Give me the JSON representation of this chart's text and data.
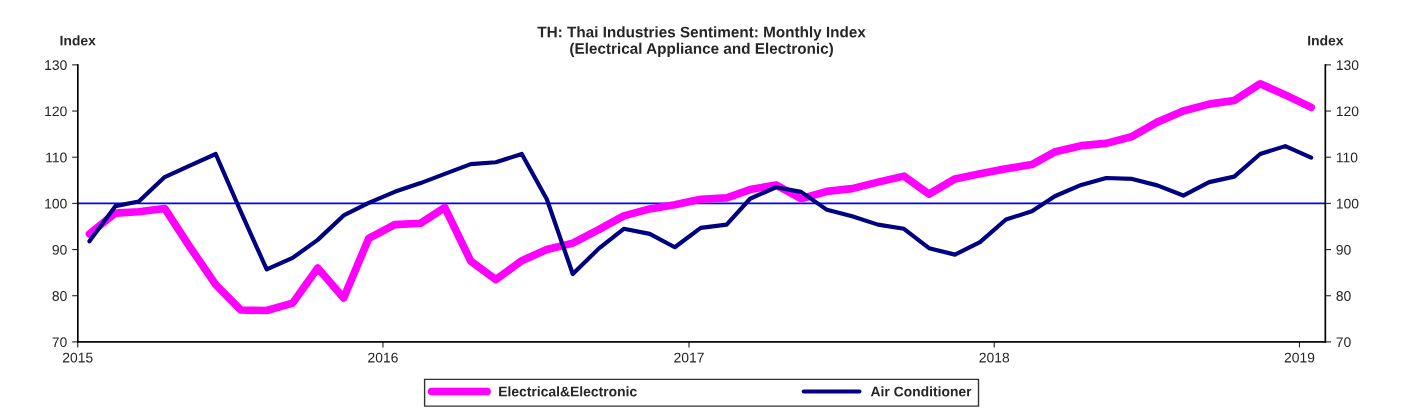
{
  "chart_data": {
    "type": "line",
    "title": "TH: Thai Industries Sentiment: Monthly Index\n(Electrical Appliance and Electronic)",
    "ylabel": "Index",
    "y2label": "Index",
    "x": [
      "2015-01-15",
      "2015-02-15",
      "2015-03-15",
      "2015-04-15",
      "2015-05-15",
      "2015-06-15",
      "2015-07-15",
      "2015-08-15",
      "2015-09-15",
      "2015-10-15",
      "2015-11-15",
      "2015-12-15",
      "2016-01-15",
      "2016-02-15",
      "2016-03-15",
      "2016-04-15",
      "2016-05-15",
      "2016-06-15",
      "2016-07-15",
      "2016-08-15",
      "2016-09-15",
      "2016-10-15",
      "2016-11-15",
      "2016-12-15",
      "2017-01-15",
      "2017-02-15",
      "2017-03-15",
      "2017-04-15",
      "2017-05-15",
      "2017-06-15",
      "2017-07-15",
      "2017-08-15",
      "2017-09-15",
      "2017-10-15",
      "2017-11-15",
      "2017-12-15",
      "2018-01-15",
      "2018-02-15",
      "2018-03-15",
      "2018-04-15",
      "2018-05-15",
      "2018-06-15",
      "2018-07-15",
      "2018-08-15",
      "2018-09-15",
      "2018-10-15",
      "2018-11-15",
      "2018-12-15",
      "2019-01-15"
    ],
    "series": [
      {
        "name": "Electrical&Electronic",
        "color": "#ff00ff",
        "values": [
          93.4,
          97.9,
          98.2,
          98.9,
          90.6,
          82.4,
          76.9,
          76.8,
          78.4,
          86.0,
          79.5,
          92.4,
          95.4,
          95.7,
          99.1,
          87.5,
          83.5,
          87.6,
          90.0,
          91.4,
          94.3,
          97.3,
          98.8,
          99.7,
          100.9,
          101.2,
          103.0,
          104.0,
          101.0,
          102.6,
          103.2,
          104.6,
          105.9,
          102.0,
          105.3,
          106.4,
          107.5,
          108.4,
          111.2,
          112.5,
          113.0,
          114.5,
          117.6,
          120.0,
          121.5,
          122.3,
          125.9,
          123.5,
          120.8
        ]
      },
      {
        "name": "Air Conditioner",
        "color": "#000080",
        "values": [
          91.8,
          99.4,
          100.4,
          105.7,
          108.2,
          110.7,
          98.2,
          85.7,
          88.2,
          92.1,
          97.4,
          100.1,
          102.5,
          104.4,
          106.4,
          108.5,
          108.9,
          110.7,
          100.9,
          84.7,
          90.2,
          94.5,
          93.4,
          90.5,
          94.7,
          95.4,
          101.0,
          103.5,
          102.5,
          98.6,
          97.2,
          95.4,
          94.5,
          90.3,
          88.9,
          91.6,
          96.5,
          98.3,
          101.6,
          104.0,
          105.5,
          105.3,
          103.9,
          101.7,
          104.6,
          105.8,
          110.7,
          112.4,
          109.9
        ]
      }
    ],
    "xlim": [
      "2015-01-01",
      "2019-02-01"
    ],
    "xticks": [
      {
        "value": "2015-01-01",
        "label": "2015"
      },
      {
        "value": "2016-01-01",
        "label": "2016"
      },
      {
        "value": "2017-01-01",
        "label": "2017"
      },
      {
        "value": "2018-01-01",
        "label": "2018"
      },
      {
        "value": "2019-01-01",
        "label": "2019"
      }
    ],
    "ylim": [
      70,
      130
    ],
    "yticks": [
      70,
      80,
      90,
      100,
      110,
      120,
      130
    ],
    "y2lim": [
      70,
      130
    ],
    "y2ticks": [
      70,
      80,
      90,
      100,
      110,
      120,
      130
    ],
    "ref_lines": [
      {
        "axis": "y",
        "value": 100,
        "color": "#0000ff"
      }
    ],
    "legend": "bottom",
    "grid": false,
    "marker": "none",
    "line_style": "solid"
  }
}
